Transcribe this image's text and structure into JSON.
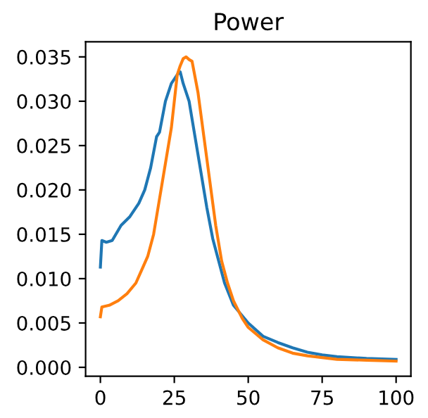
{
  "chart_data": {
    "type": "line",
    "title": "Power",
    "xlim": [
      -5,
      105
    ],
    "xticks": [
      0,
      25,
      50,
      75,
      100
    ],
    "ylim": [
      -0.001,
      0.0367
    ],
    "yticks": [
      {
        "value": 0,
        "label": "0.000"
      },
      {
        "value": 0.005,
        "label": "0.005"
      },
      {
        "value": 0.01,
        "label": "0.010"
      },
      {
        "value": 0.015,
        "label": "0.015"
      },
      {
        "value": 0.02,
        "label": "0.020"
      },
      {
        "value": 0.025,
        "label": "0.025"
      },
      {
        "value": 0.03,
        "label": "0.030"
      },
      {
        "value": 0.035,
        "label": "0.035"
      }
    ],
    "grid": false,
    "legend": false,
    "series": [
      {
        "color": "#1f77b4",
        "x": [
          0,
          0.5,
          2,
          4,
          7,
          10,
          13,
          15,
          17,
          19,
          20,
          22,
          24,
          26,
          27,
          28,
          30,
          32,
          34,
          36,
          38,
          40,
          42,
          45,
          50,
          55,
          60,
          65,
          70,
          75,
          80,
          90,
          100
        ],
        "values": [
          0.0113,
          0.0143,
          0.0141,
          0.0143,
          0.016,
          0.017,
          0.0185,
          0.02,
          0.0225,
          0.026,
          0.0265,
          0.03,
          0.032,
          0.033,
          0.0333,
          0.032,
          0.03,
          0.026,
          0.022,
          0.018,
          0.0145,
          0.012,
          0.0095,
          0.007,
          0.005,
          0.0035,
          0.0028,
          0.0022,
          0.0017,
          0.0014,
          0.0012,
          0.001,
          0.0009
        ]
      },
      {
        "color": "#ff7f0e",
        "x": [
          0,
          0.5,
          3,
          6,
          9,
          12,
          14,
          16,
          18,
          20,
          22,
          24,
          25,
          26,
          27,
          28,
          29,
          30,
          31,
          33,
          35,
          37,
          39,
          41,
          43,
          45,
          48,
          50,
          55,
          60,
          65,
          70,
          75,
          80,
          90,
          100
        ],
        "values": [
          0.0057,
          0.0068,
          0.007,
          0.0075,
          0.0083,
          0.0095,
          0.011,
          0.0125,
          0.015,
          0.019,
          0.023,
          0.027,
          0.03,
          0.033,
          0.034,
          0.0348,
          0.035,
          0.0347,
          0.0345,
          0.031,
          0.026,
          0.021,
          0.016,
          0.012,
          0.0095,
          0.0075,
          0.0055,
          0.0045,
          0.0031,
          0.0022,
          0.0016,
          0.0013,
          0.0011,
          0.0009,
          0.0008,
          0.0007
        ]
      }
    ]
  }
}
